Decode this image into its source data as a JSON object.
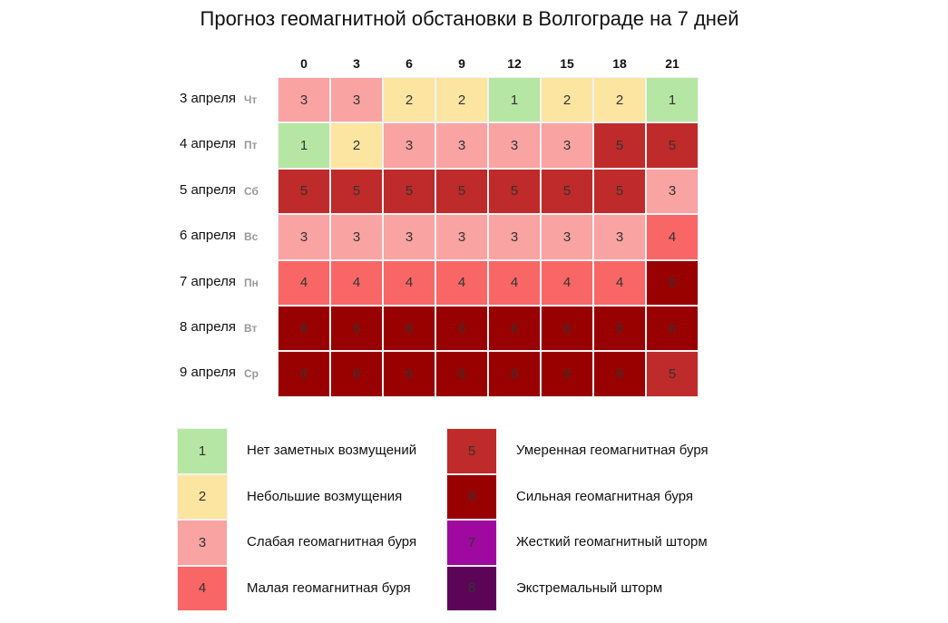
{
  "title": "Прогноз геомагнитной обстановки в Волгограде на 7 дней",
  "hours": [
    0,
    3,
    6,
    9,
    12,
    15,
    18,
    21
  ],
  "rows": [
    {
      "date": "3 апреля",
      "weekday": "Чт",
      "values": [
        3,
        3,
        2,
        2,
        1,
        2,
        2,
        1
      ]
    },
    {
      "date": "4 апреля",
      "weekday": "Пт",
      "values": [
        1,
        2,
        3,
        3,
        3,
        3,
        5,
        5
      ]
    },
    {
      "date": "5 апреля",
      "weekday": "Сб",
      "values": [
        5,
        5,
        5,
        5,
        5,
        5,
        5,
        3
      ]
    },
    {
      "date": "6 апреля",
      "weekday": "Вс",
      "values": [
        3,
        3,
        3,
        3,
        3,
        3,
        3,
        4
      ]
    },
    {
      "date": "7 апреля",
      "weekday": "Пн",
      "values": [
        4,
        4,
        4,
        4,
        4,
        4,
        4,
        6
      ]
    },
    {
      "date": "8 апреля",
      "weekday": "Вт",
      "values": [
        6,
        6,
        6,
        6,
        6,
        6,
        6,
        6
      ]
    },
    {
      "date": "9 апреля",
      "weekday": "Ср",
      "values": [
        6,
        6,
        6,
        6,
        6,
        6,
        6,
        5
      ]
    }
  ],
  "legend": [
    {
      "level": 1,
      "label": "Нет заметных возмущений",
      "color": "#b6e6a3"
    },
    {
      "level": 2,
      "label": "Небольшие возмущения",
      "color": "#fbe5a1"
    },
    {
      "level": 3,
      "label": "Слабая геомагнитная буря",
      "color": "#f9a3a3"
    },
    {
      "level": 4,
      "label": "Малая геомагнитная буря",
      "color": "#f96666"
    },
    {
      "level": 5,
      "label": "Умеренная геомагнитная буря",
      "color": "#bf2a2a"
    },
    {
      "level": 6,
      "label": "Сильная геомагнитная буря",
      "color": "#990000"
    },
    {
      "level": 7,
      "label": "Жесткий геомагнитный шторм",
      "color": "#a0099f"
    },
    {
      "level": 8,
      "label": "Экстремальный шторм",
      "color": "#5c0558"
    }
  ]
}
